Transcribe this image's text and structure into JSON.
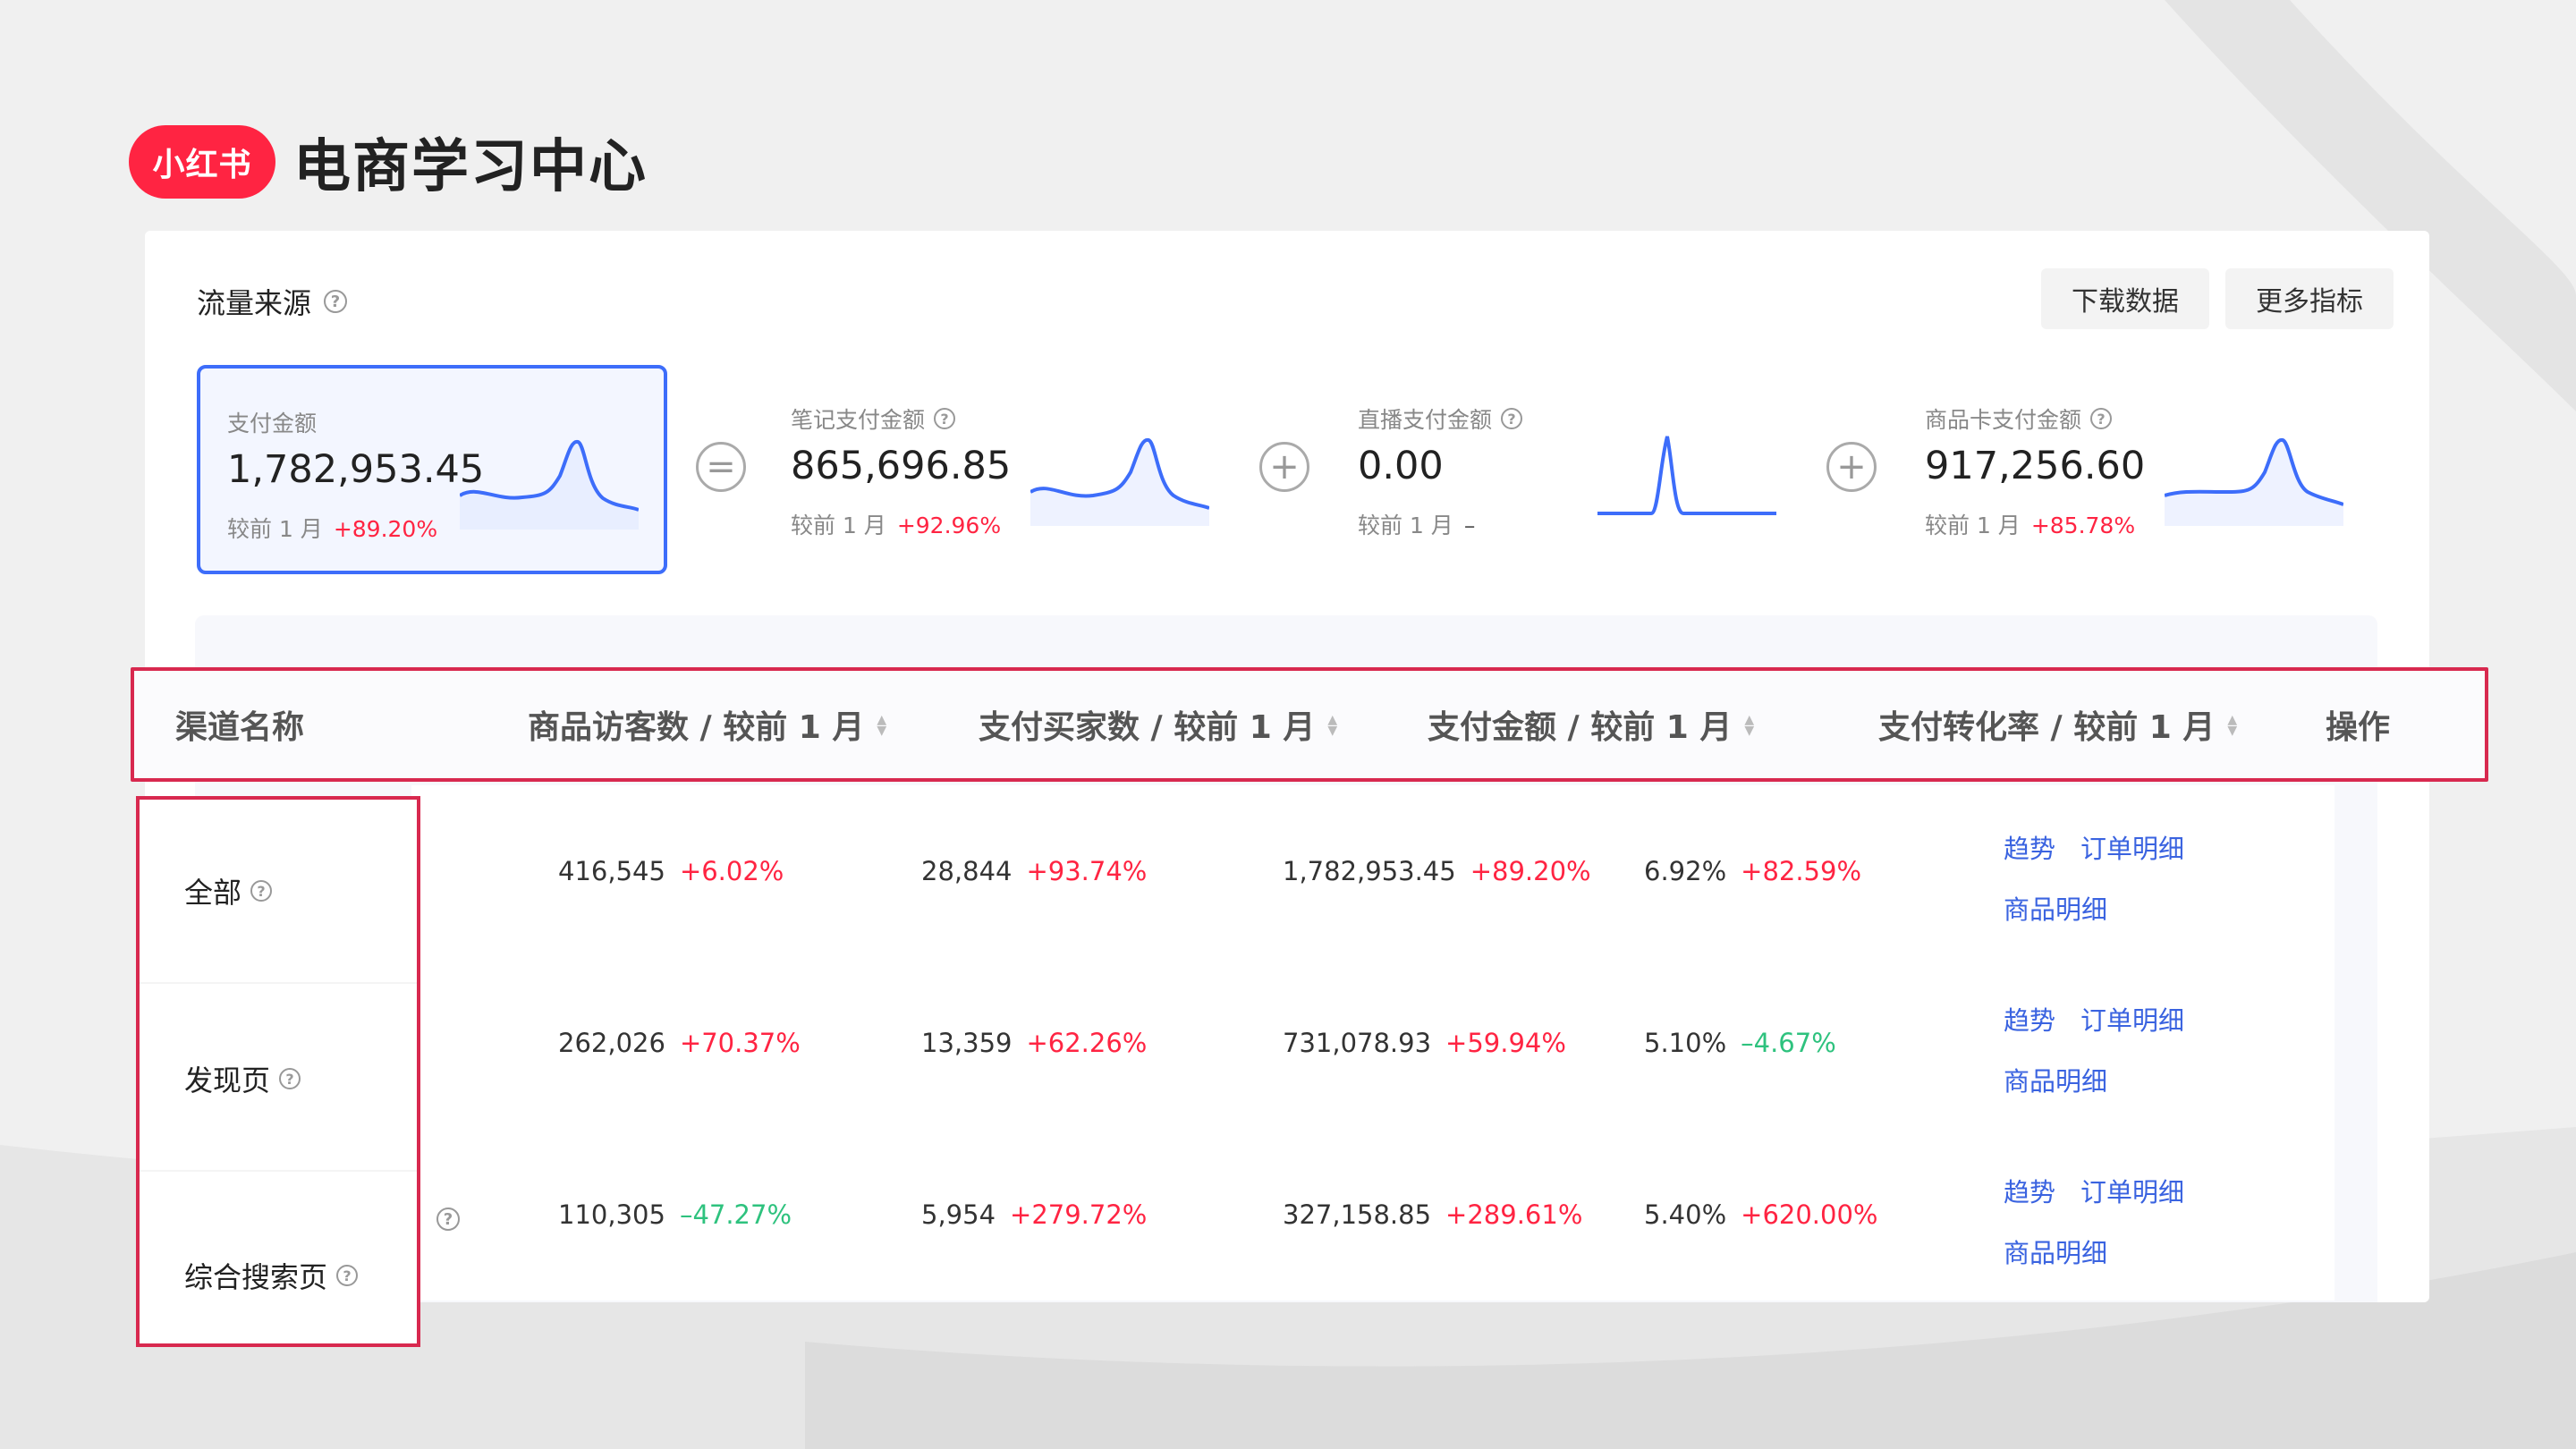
{
  "brand": {
    "logo_text": "小红书",
    "title": "电商学习中心"
  },
  "card": {
    "title": "流量来源",
    "actions": {
      "download": "下载数据",
      "more_metrics": "更多指标"
    }
  },
  "metrics": [
    {
      "label": "支付金额",
      "value": "1,782,953.45",
      "compare": "较前 1 月",
      "change": "+89.20%"
    },
    {
      "label": "笔记支付金额",
      "value": "865,696.85",
      "compare": "较前 1 月",
      "change": "+92.96%"
    },
    {
      "label": "直播支付金额",
      "value": "0.00",
      "compare": "较前 1 月",
      "change": "–"
    },
    {
      "label": "商品卡支付金额",
      "value": "917,256.60",
      "compare": "较前 1 月",
      "change": "+85.78%"
    }
  ],
  "operators": {
    "equals": "=",
    "plus": "+"
  },
  "table": {
    "headers": {
      "channel": "渠道名称",
      "visitors": "商品访客数 / 较前 1 月",
      "buyers": "支付买家数 / 较前 1 月",
      "amount": "支付金额 / 较前 1 月",
      "conversion": "支付转化率 / 较前 1 月",
      "actions": "操作"
    },
    "rows": [
      {
        "channel": "全部",
        "visitors": "416,545",
        "visitors_chg": "+6.02%",
        "buyers": "28,844",
        "buyers_chg": "+93.74%",
        "amount": "1,782,953.45",
        "amount_chg": "+89.20%",
        "conversion": "6.92%",
        "conversion_chg": "+82.59%"
      },
      {
        "channel": "发现页",
        "visitors": "262,026",
        "visitors_chg": "+70.37%",
        "buyers": "13,359",
        "buyers_chg": "+62.26%",
        "amount": "731,078.93",
        "amount_chg": "+59.94%",
        "conversion": "5.10%",
        "conversion_chg": "–4.67%"
      },
      {
        "channel": "综合搜索页",
        "visitors": "110,305",
        "visitors_chg": "–47.27%",
        "buyers": "5,954",
        "buyers_chg": "+279.72%",
        "amount": "327,158.85",
        "amount_chg": "+289.61%",
        "conversion": "5.40%",
        "conversion_chg": "+620.00%"
      }
    ],
    "row_actions": {
      "trend": "趋势",
      "order_detail": "订单明细",
      "product_detail": "商品明细"
    }
  },
  "colors": {
    "brand": "#ff2442",
    "accent": "#3d6dfa",
    "up": "#ff2442",
    "down": "#2ec27e",
    "highlight": "#d8294f",
    "link": "#3a63e0"
  },
  "icons": [
    "help-icon",
    "sort-icon",
    "equals-icon",
    "plus-icon"
  ]
}
